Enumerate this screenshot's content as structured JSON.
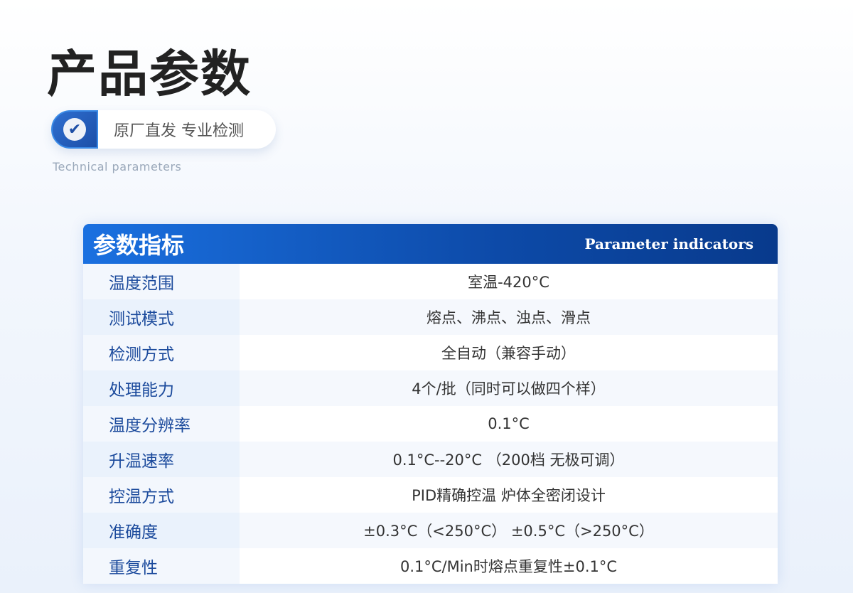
{
  "page": {
    "title": "产品参数",
    "badge": "原厂直发 专业检测",
    "badge_icon": "check-circle-icon",
    "subtitle": "Technical parameters"
  },
  "table": {
    "title": "参数指标",
    "title_en": "Parameter indicators",
    "rows": [
      {
        "label": "温度范围",
        "value": "室温-420°C"
      },
      {
        "label": "测试模式",
        "value": "熔点、沸点、浊点、滑点"
      },
      {
        "label": "检测方式",
        "value": "全自动（兼容手动）"
      },
      {
        "label": "处理能力",
        "value": "4个/批（同时可以做四个样）"
      },
      {
        "label": "温度分辨率",
        "value": "0.1°C"
      },
      {
        "label": "升温速率",
        "value": "0.1°C--20°C （200档 无极可调）"
      },
      {
        "label": "控温方式",
        "value": "PID精确控温 炉体全密闭设计"
      },
      {
        "label": "准确度",
        "value": "±0.3°C（<250°C） ±0.5°C（>250°C）"
      },
      {
        "label": "重复性",
        "value": "0.1°C/Min时熔点重复性±0.1°C"
      }
    ]
  },
  "colors": {
    "header_start": "#1a70e0",
    "header_end": "#083a8c",
    "label_text": "#1b4a9c"
  }
}
